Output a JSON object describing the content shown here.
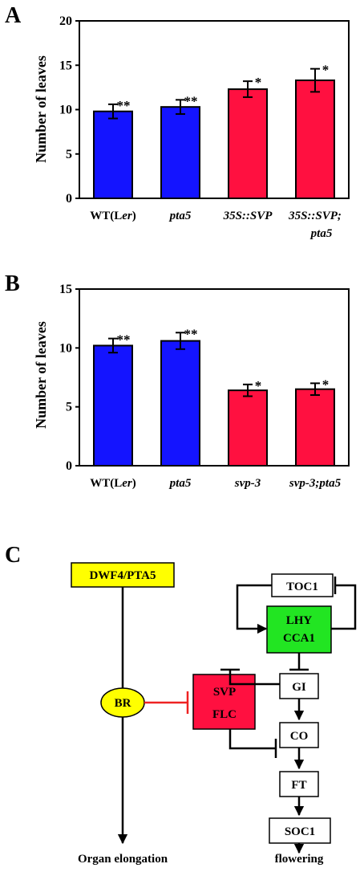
{
  "panels": {
    "a": "A",
    "b": "B",
    "c": "C"
  },
  "colors": {
    "blue": "#1414ff",
    "red": "#ff1040",
    "yellow": "#ffff00",
    "green": "#22e522",
    "red_inhibit": "#ee2222"
  },
  "chart_data": [
    {
      "type": "bar",
      "ylabel": "Number of leaves",
      "ylim": [
        0,
        20
      ],
      "yticks": [
        0,
        5,
        10,
        15,
        20
      ],
      "categories": [
        "WT(Ler)",
        "pta5",
        "35S::SVP",
        "35S::SVP; pta5"
      ],
      "category_lines": [
        [
          {
            "t": "WT(L",
            "i": false
          },
          {
            "t": "er",
            "i": true
          },
          {
            "t": ")",
            "i": false
          }
        ],
        [
          {
            "t": "pta5",
            "i": true
          }
        ],
        [
          {
            "t": "35S::SVP",
            "i": true
          }
        ],
        [
          {
            "t": "35S::SVP;",
            "i": true
          }
        ]
      ],
      "category_second_lines": [
        "",
        "",
        "",
        "pta5"
      ],
      "values": [
        9.8,
        10.3,
        12.3,
        13.3
      ],
      "errors": [
        0.8,
        0.8,
        0.9,
        1.3
      ],
      "bar_colors": [
        "blue",
        "blue",
        "red",
        "red"
      ],
      "annotations": [
        "**",
        "**",
        "*",
        "*"
      ]
    },
    {
      "type": "bar",
      "ylabel": "Number of leaves",
      "ylim": [
        0,
        15
      ],
      "yticks": [
        0,
        5,
        10,
        15
      ],
      "categories": [
        "WT(Ler)",
        "pta5",
        "svp-3",
        "svp-3;pta5"
      ],
      "category_lines": [
        [
          {
            "t": "WT(L",
            "i": false
          },
          {
            "t": "er",
            "i": true
          },
          {
            "t": ")",
            "i": false
          }
        ],
        [
          {
            "t": "pta5",
            "i": true
          }
        ],
        [
          {
            "t": "svp-3",
            "i": true
          }
        ],
        [
          {
            "t": "svp-3;pta5",
            "i": true
          }
        ]
      ],
      "category_second_lines": [
        "",
        "",
        "",
        ""
      ],
      "values": [
        10.2,
        10.6,
        6.4,
        6.5
      ],
      "errors": [
        0.6,
        0.7,
        0.5,
        0.5
      ],
      "bar_colors": [
        "blue",
        "blue",
        "red",
        "red"
      ],
      "annotations": [
        "**",
        "**",
        "*",
        "*"
      ]
    }
  ],
  "diagram": {
    "dwf4": "DWF4/PTA5",
    "br": "BR",
    "organ_elongation": "Organ elongation",
    "toc1": "TOC1",
    "lhy": "LHY",
    "cca1": "CCA1",
    "gi": "GI",
    "svp": "SVP",
    "flc": "FLC",
    "co": "CO",
    "ft": "FT",
    "soc1": "SOC1",
    "flowering": "flowering"
  }
}
